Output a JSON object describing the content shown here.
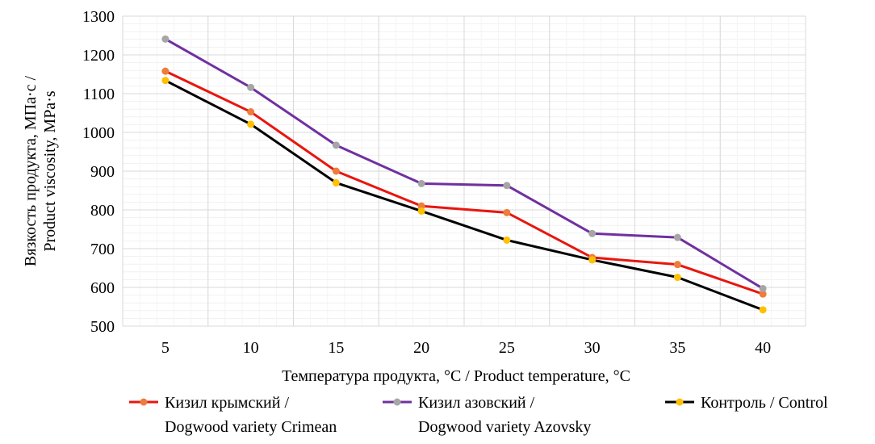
{
  "chart_data": {
    "type": "line",
    "x": [
      5,
      10,
      15,
      20,
      25,
      30,
      35,
      40
    ],
    "xlabel": "Температура продукта, °C / Product temperature, °C",
    "ylabel_lines": [
      "Вязкость продукта, МПа·с /",
      "Product viscosity, MPa·s"
    ],
    "ylim": [
      500,
      1300
    ],
    "yticks": [
      500,
      600,
      700,
      800,
      900,
      1000,
      1100,
      1200,
      1300
    ],
    "grid": true,
    "legend_position": "bottom",
    "series": [
      {
        "name_lines": [
          "Кизил крымский /",
          "Dogwood variety Crimean"
        ],
        "line_color": "#e8160f",
        "marker_color": "#ee7c3a",
        "values": [
          1158,
          1053,
          900,
          810,
          793,
          677,
          659,
          583
        ]
      },
      {
        "name_lines": [
          "Кизил азовский /",
          "Dogwood variety Azovsky"
        ],
        "line_color": "#7030a0",
        "marker_color": "#a6a6a6",
        "values": [
          1241,
          1116,
          967,
          868,
          863,
          739,
          729,
          597
        ]
      },
      {
        "name_lines": [
          "Контроль / Control"
        ],
        "line_color": "#000000",
        "marker_color": "#ffc000",
        "values": [
          1134,
          1021,
          870,
          797,
          722,
          671,
          626,
          542
        ]
      }
    ]
  }
}
